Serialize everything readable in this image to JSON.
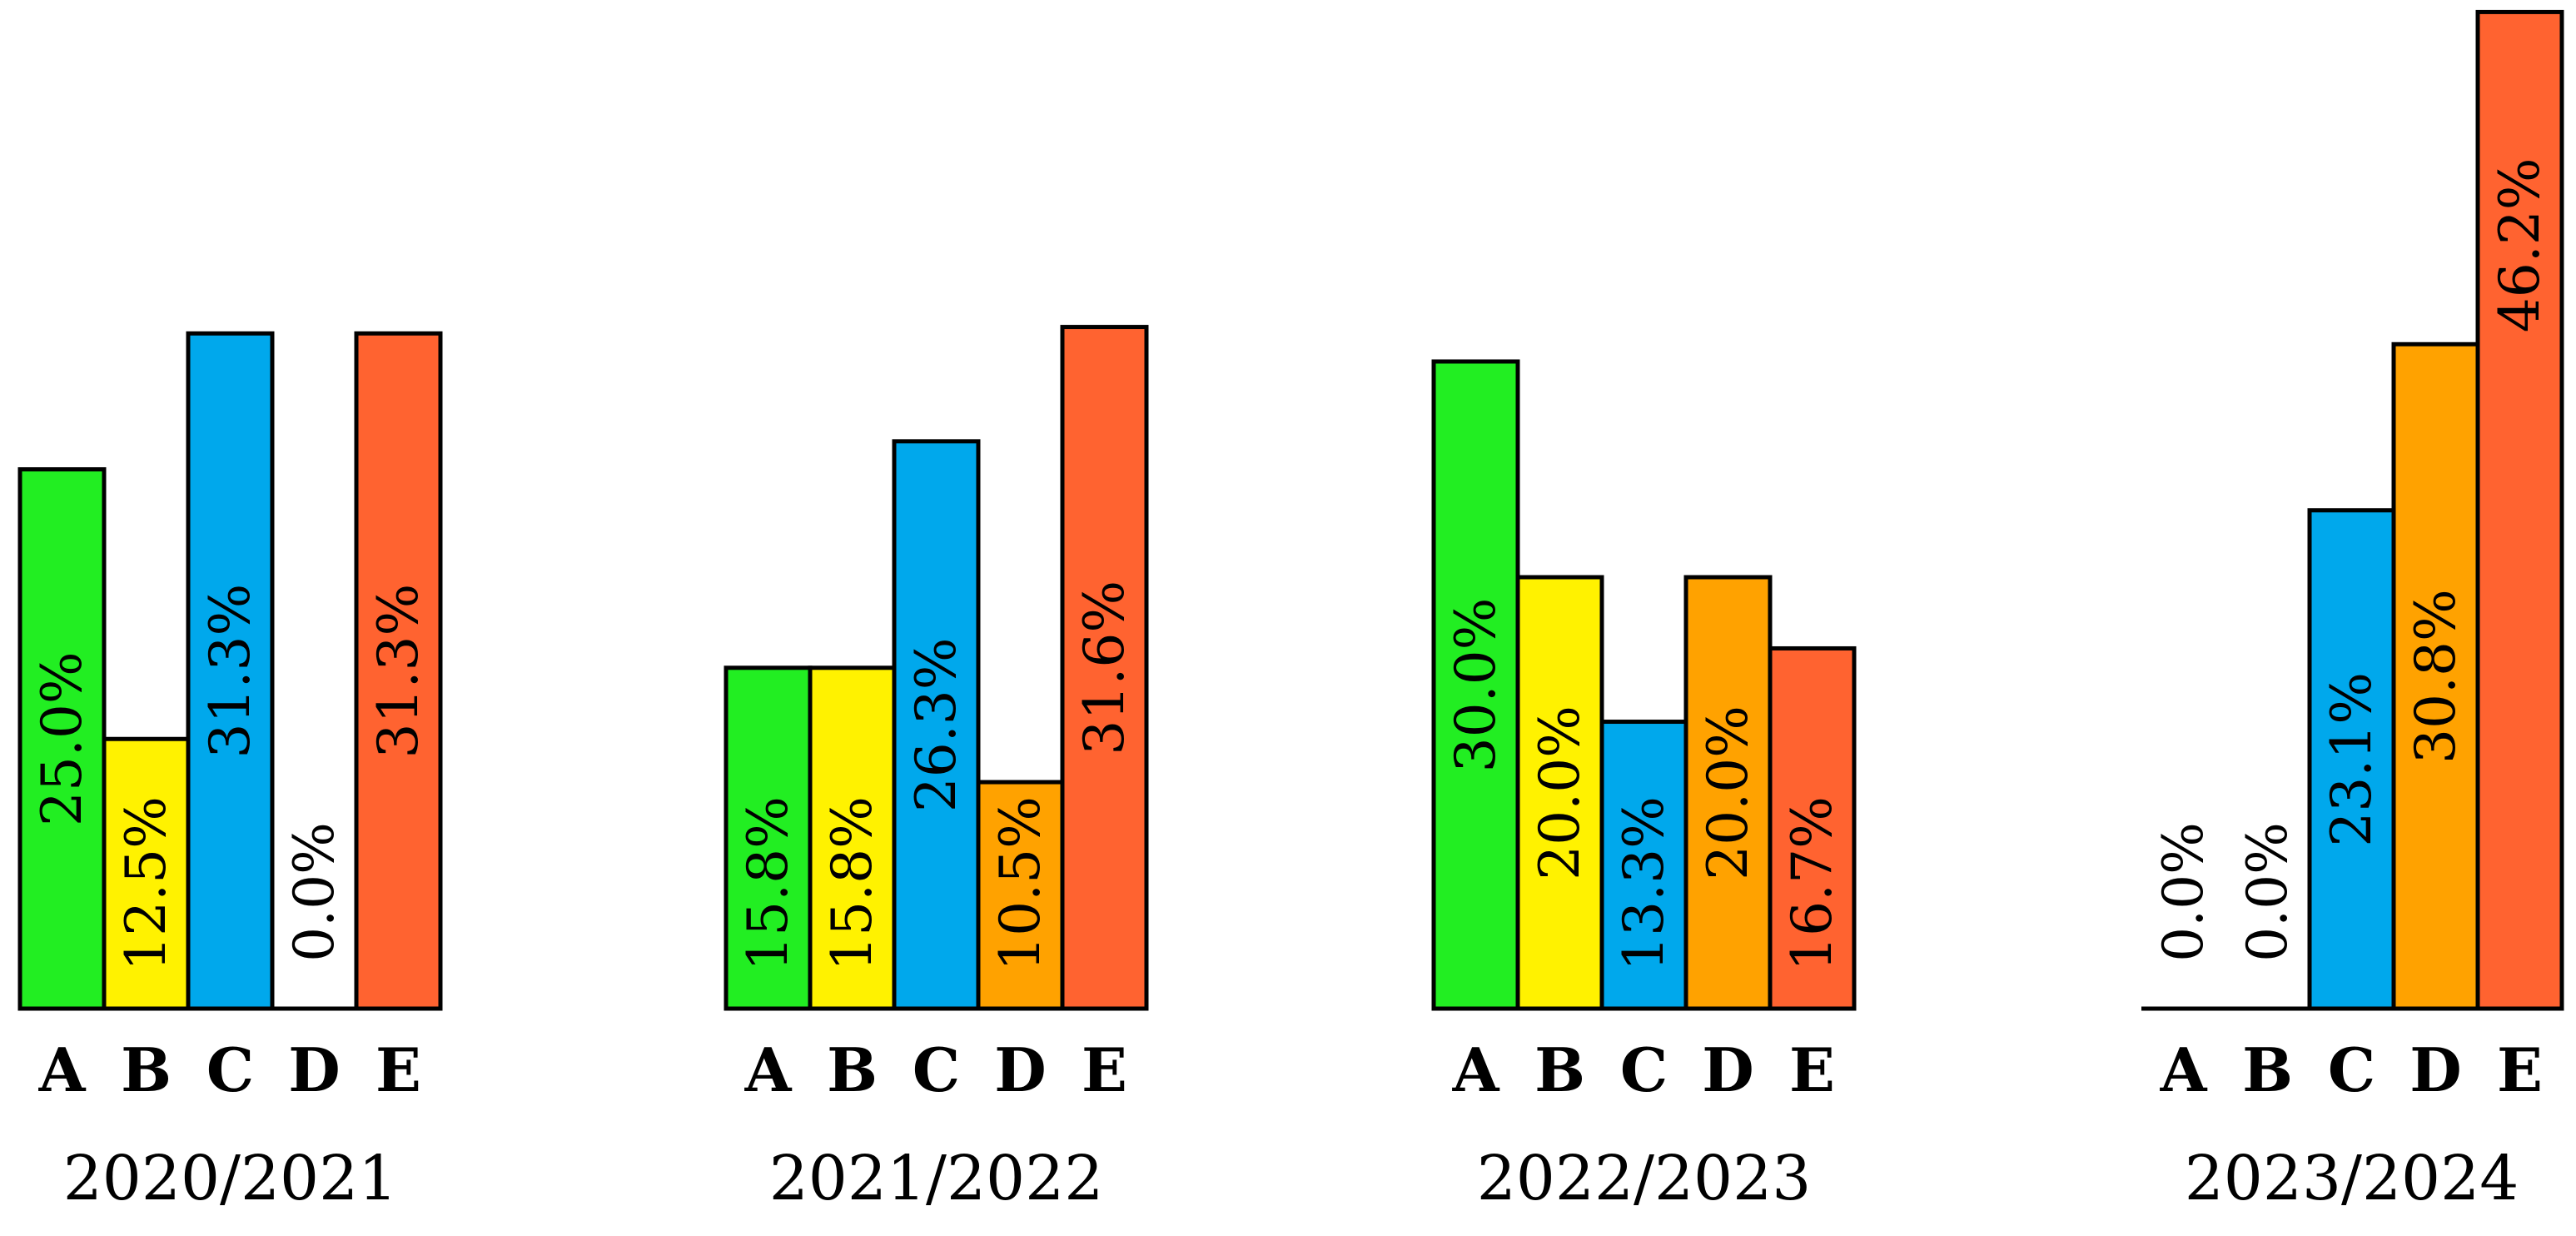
{
  "chart_data": [
    {
      "type": "bar",
      "group_label": "2020/2021",
      "categories": [
        "A",
        "B",
        "C",
        "D",
        "E"
      ],
      "values": [
        25.0,
        12.5,
        31.3,
        0.0,
        31.3
      ],
      "value_labels": [
        "25.0%",
        "12.5%",
        "31.3%",
        "0.0%",
        "31.3%"
      ],
      "grid": false
    },
    {
      "type": "bar",
      "group_label": "2021/2022",
      "categories": [
        "A",
        "B",
        "C",
        "D",
        "E"
      ],
      "values": [
        15.8,
        15.8,
        26.3,
        10.5,
        31.6
      ],
      "value_labels": [
        "15.8%",
        "15.8%",
        "26.3%",
        "10.5%",
        "31.6%"
      ],
      "grid": false
    },
    {
      "type": "bar",
      "group_label": "2022/2023",
      "categories": [
        "A",
        "B",
        "C",
        "D",
        "E"
      ],
      "values": [
        30.0,
        20.0,
        13.3,
        20.0,
        16.7
      ],
      "value_labels": [
        "30.0%",
        "20.0%",
        "13.3%",
        "20.0%",
        "16.7%"
      ],
      "grid": false
    },
    {
      "type": "bar",
      "group_label": "2023/2024",
      "categories": [
        "A",
        "B",
        "C",
        "D",
        "E"
      ],
      "values": [
        0.0,
        0.0,
        23.1,
        30.8,
        46.2
      ],
      "value_labels": [
        "0.0%",
        "0.0%",
        "23.1%",
        "30.8%",
        "46.2%"
      ],
      "grid": false
    }
  ],
  "colors": {
    "A": "#22ee22",
    "B": "#fff200",
    "C": "#00a8ec",
    "D": "#ffa200",
    "E": "#ff6330",
    "outline": "#000000"
  }
}
